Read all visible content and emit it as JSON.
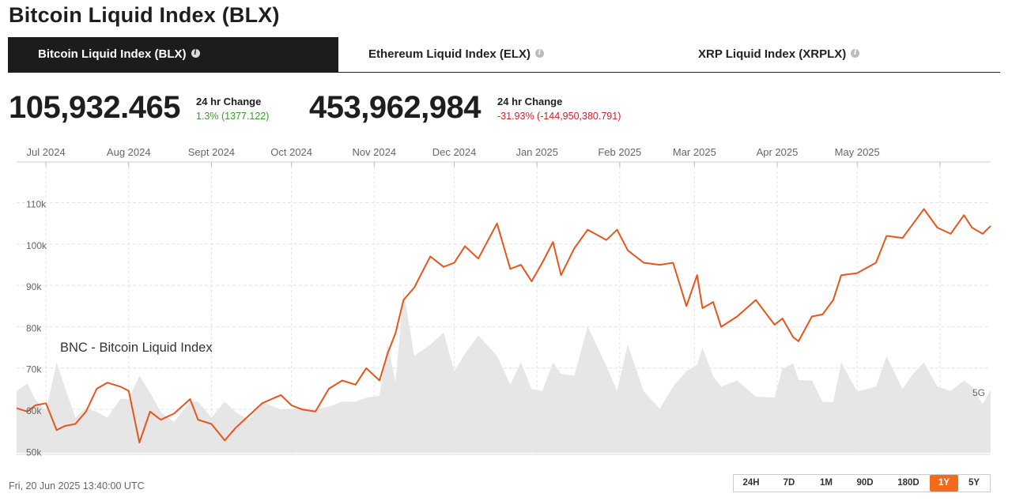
{
  "page_title": "Bitcoin Liquid Index (BLX)",
  "tabs": [
    {
      "label": "Bitcoin Liquid Index (BLX)",
      "active": true
    },
    {
      "label": "Ethereum Liquid Index (ELX)",
      "active": false
    },
    {
      "label": "XRP Liquid Index (XRPLX)",
      "active": false
    }
  ],
  "stats": {
    "price": {
      "value": "105,932.465",
      "label": "24 hr Change",
      "change": "1.3% (1377.122)",
      "direction": "up"
    },
    "volume": {
      "value": "453,962,984",
      "label": "24 hr Change",
      "change": "-31.93% (-144,950,380.791)",
      "direction": "down"
    }
  },
  "colors": {
    "line": "#e8551a",
    "volume": "#e6e6e6",
    "positive": "#3a9a2a",
    "negative": "#d2202a",
    "accent": "#f26b1d"
  },
  "chart_data": {
    "type": "line",
    "title": "BNC - Bitcoin Liquid Index",
    "x_ticks": [
      "Jul 2024",
      "Aug 2024",
      "Sept 2024",
      "Oct 2024",
      "Nov 2024",
      "Dec 2024",
      "Jan 2025",
      "Feb 2025",
      "Mar 2025",
      "Apr 2025",
      "May 2025"
    ],
    "y_ticks": [
      {
        "value": 50000,
        "label": "50k"
      },
      {
        "value": 60000,
        "label": "60k"
      },
      {
        "value": 70000,
        "label": "70k"
      },
      {
        "value": 80000,
        "label": "80k"
      },
      {
        "value": 90000,
        "label": "90k"
      },
      {
        "value": 100000,
        "label": "100k"
      },
      {
        "value": 110000,
        "label": "110k"
      }
    ],
    "ylim": [
      49000,
      120000
    ],
    "xlim": [
      "2024-06-20",
      "2025-06-20"
    ],
    "volume_label": "5G",
    "grid": true,
    "series": [
      {
        "x": [
          "2024-06-20",
          "2024-06-24",
          "2024-06-27",
          "2024-07-01",
          "2024-07-05",
          "2024-07-08",
          "2024-07-12",
          "2024-07-16",
          "2024-07-20",
          "2024-07-24",
          "2024-07-29",
          "2024-08-01",
          "2024-08-05",
          "2024-08-09",
          "2024-08-13",
          "2024-08-18",
          "2024-08-24",
          "2024-08-27",
          "2024-09-01",
          "2024-09-06",
          "2024-09-10",
          "2024-09-15",
          "2024-09-20",
          "2024-09-27",
          "2024-10-01",
          "2024-10-05",
          "2024-10-10",
          "2024-10-15",
          "2024-10-20",
          "2024-10-25",
          "2024-10-29",
          "2024-11-03",
          "2024-11-06",
          "2024-11-09",
          "2024-11-12",
          "2024-11-16",
          "2024-11-22",
          "2024-11-27",
          "2024-12-01",
          "2024-12-05",
          "2024-12-10",
          "2024-12-17",
          "2024-12-22",
          "2024-12-26",
          "2024-12-30",
          "2025-01-03",
          "2025-01-07",
          "2025-01-10",
          "2025-01-15",
          "2025-01-20",
          "2025-01-27",
          "2025-01-31",
          "2025-02-04",
          "2025-02-10",
          "2025-02-16",
          "2025-02-21",
          "2025-02-26",
          "2025-03-02",
          "2025-03-04",
          "2025-03-08",
          "2025-03-11",
          "2025-03-17",
          "2025-03-24",
          "2025-03-31",
          "2025-04-03",
          "2025-04-07",
          "2025-04-09",
          "2025-04-14",
          "2025-04-18",
          "2025-04-22",
          "2025-04-25",
          "2025-05-01",
          "2025-05-08",
          "2025-05-12",
          "2025-05-18",
          "2025-05-22",
          "2025-05-26",
          "2025-05-31",
          "2025-06-05",
          "2025-06-10",
          "2025-06-13",
          "2025-06-17",
          "2025-06-20"
        ],
        "values": [
          61800,
          61000,
          62500,
          63000,
          56500,
          57500,
          58000,
          61000,
          66500,
          68000,
          67000,
          66000,
          53500,
          61000,
          59000,
          60500,
          64000,
          59000,
          58000,
          54000,
          57000,
          60000,
          63000,
          65000,
          62500,
          61500,
          61000,
          66500,
          68500,
          67500,
          71500,
          68500,
          75000,
          80000,
          88000,
          91000,
          98500,
          96000,
          97000,
          101000,
          98000,
          106500,
          95500,
          96500,
          92500,
          97000,
          102000,
          94000,
          100500,
          105000,
          102500,
          105000,
          100000,
          97000,
          96500,
          97000,
          86500,
          94000,
          86000,
          87500,
          81500,
          84000,
          88000,
          82000,
          83500,
          79000,
          78000,
          84000,
          84500,
          88000,
          94000,
          94500,
          97000,
          103500,
          103000,
          106500,
          110000,
          105500,
          104000,
          108500,
          105500,
          104000,
          105900
        ]
      }
    ],
    "volume": [
      2.8,
      2.3,
      2.1,
      1.9,
      3.0,
      2.6,
      1.6,
      1.5,
      1.6,
      1.6,
      1.8,
      2.1,
      3.5,
      2.0,
      1.6,
      1.4,
      1.7,
      2.0,
      1.6,
      1.7,
      1.6,
      1.5,
      1.7,
      1.7,
      2.0,
      1.5,
      1.7,
      2.1,
      1.7,
      2.0,
      2.5,
      1.9,
      4.3,
      3.2,
      5.4,
      3.8,
      4.9,
      4.0,
      3.2,
      4.5,
      3.9,
      3.8,
      3.1,
      3.0,
      2.5,
      2.8,
      3.0,
      3.1,
      3.5,
      4.2,
      3.4,
      2.8,
      3.6,
      2.4,
      2.0,
      2.2,
      3.2,
      4.0,
      3.5,
      3.0,
      3.0,
      2.4,
      2.2,
      2.5,
      2.8,
      3.5,
      3.3,
      2.4,
      2.0,
      2.3,
      3.0,
      2.4,
      3.0,
      3.2,
      2.5,
      3.6,
      3.0,
      2.6,
      2.8,
      2.4,
      2.6,
      2.2,
      2.1
    ]
  },
  "timestamp": "Fri, 20 Jun 2025 13:40:00 UTC",
  "ranges": [
    {
      "label": "24H",
      "active": false
    },
    {
      "label": "7D",
      "active": false
    },
    {
      "label": "1M",
      "active": false
    },
    {
      "label": "90D",
      "active": false
    },
    {
      "label": "180D",
      "active": false
    },
    {
      "label": "1Y",
      "active": true
    },
    {
      "label": "5Y",
      "active": false
    }
  ]
}
